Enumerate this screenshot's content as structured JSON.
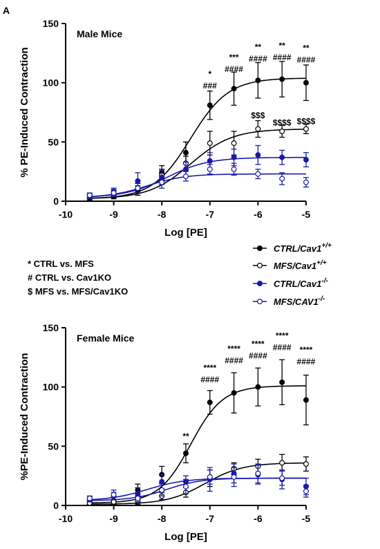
{
  "figure": {
    "panel_letter": "A",
    "key_notes": [
      "* CTRL vs. MFS",
      "# CTRL vs. Cav1KO",
      "$ MFS vs. MFS/Cav1KO"
    ],
    "legend": [
      {
        "base": "CTRL/Cav1",
        "sup": "+/+",
        "color": "#000000",
        "filled": true
      },
      {
        "base": "MFS/Cav1",
        "sup": "+/+",
        "color": "#000000",
        "filled": false
      },
      {
        "base": "CTRL/Cav1",
        "sup": "-/-",
        "color": "#1a1aa8",
        "filled": true
      },
      {
        "base": "MFS/CAV1",
        "sup": "-/-",
        "color": "#1a1aa8",
        "filled": false
      }
    ]
  },
  "chart_data": [
    {
      "type": "scatter",
      "title": "Male Mice",
      "xlabel": "Log [PE]",
      "ylabel": "% PE-Induced Contraction",
      "xlim": [
        -10,
        -5
      ],
      "ylim": [
        0,
        150
      ],
      "xticks": [
        -10,
        -9,
        -8,
        -7,
        -6,
        -5
      ],
      "yticks": [
        0,
        50,
        100,
        150
      ],
      "x": [
        -9.5,
        -9,
        -8.5,
        -8,
        -7.5,
        -7,
        -6.5,
        -6,
        -5.5,
        -5
      ],
      "series": [
        {
          "name": "CTRL/Cav1+/+",
          "color": "#000000",
          "filled": true,
          "values": [
            3,
            4,
            9,
            24,
            41,
            81,
            95,
            102,
            103,
            100
          ],
          "errors": [
            2,
            2,
            4,
            6,
            9,
            12,
            14,
            15,
            15,
            15
          ],
          "fit": {
            "bottom": 2,
            "top": 104,
            "logec50": -7.4,
            "hill": 1.1
          }
        },
        {
          "name": "MFS/Cav1+/+",
          "color": "#000000",
          "filled": false,
          "values": [
            4,
            6,
            11,
            22,
            32,
            49,
            49,
            61,
            59,
            61
          ],
          "errors": [
            2,
            3,
            4,
            5,
            6,
            10,
            10,
            7,
            5,
            4
          ],
          "fit": {
            "bottom": 2,
            "top": 61,
            "logec50": -7.4,
            "hill": 1.0
          }
        },
        {
          "name": "CTRL/Cav1-/-",
          "color": "#1a1aa8",
          "filled": true,
          "values": [
            4,
            8,
            17,
            20,
            27,
            34,
            37,
            39,
            37,
            35
          ],
          "errors": [
            2,
            3,
            7,
            6,
            6,
            7,
            7,
            8,
            6,
            6
          ],
          "fit": {
            "bottom": 3,
            "top": 37,
            "logec50": -7.9,
            "hill": 1.0
          }
        },
        {
          "name": "MFS/CAV1-/-",
          "color": "#1a1aa8",
          "filled": false,
          "values": [
            5,
            7,
            11,
            16,
            21,
            27,
            27,
            23,
            19,
            16
          ],
          "errors": [
            2,
            3,
            4,
            5,
            4,
            4,
            5,
            4,
            5,
            4
          ],
          "fit": {
            "bottom": 3,
            "top": 23,
            "logec50": -8.3,
            "hill": 1.1
          }
        }
      ],
      "annotations": [
        {
          "x": -7,
          "lines": [
            "*",
            "###"
          ],
          "y": 95
        },
        {
          "x": -6.5,
          "lines": [
            "***",
            "####"
          ],
          "y": 109
        },
        {
          "x": -6,
          "lines": [
            "**",
            "####"
          ],
          "y": 118
        },
        {
          "x": -5.5,
          "lines": [
            "**",
            "####"
          ],
          "y": 119
        },
        {
          "x": -5,
          "lines": [
            "**",
            "####"
          ],
          "y": 117
        },
        {
          "x": -6,
          "lines": [
            "$$$"
          ],
          "y": 70
        },
        {
          "x": -5.5,
          "lines": [
            "$$$$"
          ],
          "y": 64
        },
        {
          "x": -5,
          "lines": [
            "$$$$"
          ],
          "y": 65
        }
      ]
    },
    {
      "type": "scatter",
      "title": "Female Mice",
      "xlabel": "Log [PE]",
      "ylabel": "%PE-Induced Contraction",
      "xlim": [
        -10,
        -5
      ],
      "ylim": [
        0,
        150
      ],
      "xticks": [
        -10,
        -9,
        -8,
        -7,
        -6,
        -5
      ],
      "yticks": [
        0,
        50,
        100,
        150
      ],
      "x": [
        -9.5,
        -9,
        -8.5,
        -8,
        -7.5,
        -7,
        -6.5,
        -6,
        -5.5,
        -5
      ],
      "series": [
        {
          "name": "CTRL/Cav1+/+",
          "color": "#000000",
          "filled": true,
          "values": [
            3,
            4,
            13,
            26,
            44,
            87,
            95,
            100,
            104,
            89
          ],
          "errors": [
            2,
            3,
            5,
            7,
            8,
            10,
            17,
            16,
            19,
            21
          ],
          "fit": {
            "bottom": 2,
            "top": 101,
            "logec50": -7.4,
            "hill": 1.3
          }
        },
        {
          "name": "MFS/Cav1+/+",
          "color": "#000000",
          "filled": false,
          "values": [
            2,
            3,
            4,
            8,
            11,
            23,
            31,
            33,
            36,
            35
          ],
          "errors": [
            1,
            2,
            3,
            3,
            4,
            7,
            5,
            6,
            7,
            6
          ],
          "fit": {
            "bottom": 1,
            "top": 36,
            "logec50": -7.1,
            "hill": 1.1
          }
        },
        {
          "name": "CTRL/Cav1-/-",
          "color": "#1a1aa8",
          "filled": true,
          "values": [
            5,
            8,
            10,
            20,
            20,
            22,
            27,
            26,
            22,
            16
          ],
          "errors": [
            2,
            3,
            5,
            6,
            5,
            10,
            8,
            8,
            8,
            7
          ],
          "fit": {
            "bottom": 4,
            "top": 23,
            "logec50": -8.3,
            "hill": 1.1
          }
        },
        {
          "name": "MFS/CAV1-/-",
          "color": "#1a1aa8",
          "filled": false,
          "values": [
            6,
            9,
            6,
            13,
            16,
            24,
            24,
            27,
            23,
            12
          ],
          "errors": [
            2,
            4,
            3,
            5,
            6,
            6,
            8,
            8,
            6,
            5
          ],
          "fit": {
            "bottom": 4,
            "top": 23,
            "logec50": -7.9,
            "hill": 1.2
          }
        }
      ],
      "annotations": [
        {
          "x": -7.5,
          "lines": [
            "**"
          ],
          "y": 56
        },
        {
          "x": -7,
          "lines": [
            "****",
            "####"
          ],
          "y": 104
        },
        {
          "x": -6.5,
          "lines": [
            "****",
            "####"
          ],
          "y": 120
        },
        {
          "x": -6,
          "lines": [
            "****",
            "####"
          ],
          "y": 124
        },
        {
          "x": -5.5,
          "lines": [
            "****",
            "####"
          ],
          "y": 131
        },
        {
          "x": -5,
          "lines": [
            "****",
            "####"
          ],
          "y": 119
        }
      ]
    }
  ]
}
